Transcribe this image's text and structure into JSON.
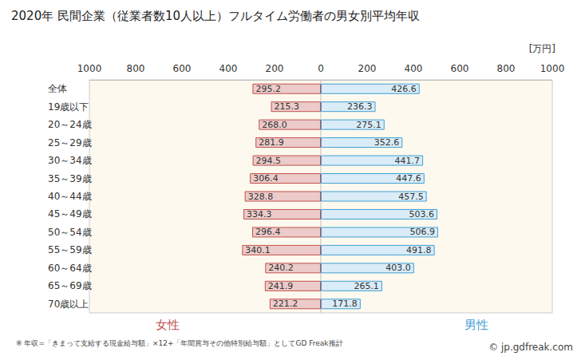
{
  "chart_data": {
    "type": "bar",
    "orientation": "horizontal",
    "title": "2020年 民間企業（従業者数10人以上）フルタイム労働者の男女別平均年収",
    "xlabel": "[万円]",
    "categories": [
      "全体",
      "19歳以下",
      "20～24歳",
      "25～29歳",
      "30～34歳",
      "35～39歳",
      "40～44歳",
      "45～49歳",
      "50～54歳",
      "55～59歳",
      "60～64歳",
      "65～69歳",
      "70歳以上"
    ],
    "series": [
      {
        "name": "女性",
        "color": "#c0504d",
        "values": [
          295.2,
          215.3,
          268.0,
          281.9,
          294.5,
          306.4,
          328.8,
          334.3,
          296.4,
          340.1,
          240.2,
          241.9,
          221.2
        ],
        "value_labels": [
          "295.2",
          "215.3",
          "268.0",
          "281.9",
          "294.5",
          "306.4",
          "328.8",
          "334.3",
          "296.4",
          "340.1",
          "240.2",
          "241.9",
          "221.2"
        ]
      },
      {
        "name": "男性",
        "color": "#3f9fd5",
        "values": [
          426.6,
          236.3,
          275.1,
          352.6,
          441.7,
          447.6,
          457.5,
          503.6,
          506.9,
          491.8,
          403.0,
          265.1,
          171.8
        ],
        "value_labels": [
          "426.6",
          "236.3",
          "275.1",
          "352.6",
          "441.7",
          "447.6",
          "457.5",
          "503.6",
          "506.9",
          "491.8",
          "403.0",
          "265.1",
          "171.8"
        ]
      }
    ],
    "xlim": [
      0,
      1000
    ],
    "xticks": [
      0,
      200,
      400,
      600,
      800,
      1000
    ],
    "data_labels": true,
    "grid": false,
    "annotations": [
      "※ 年収=「きまって支給する現金給与額」×12+「年間賞与その他特別給与額」としてGD Freak推計",
      "© jp.gdfreak.com"
    ]
  }
}
